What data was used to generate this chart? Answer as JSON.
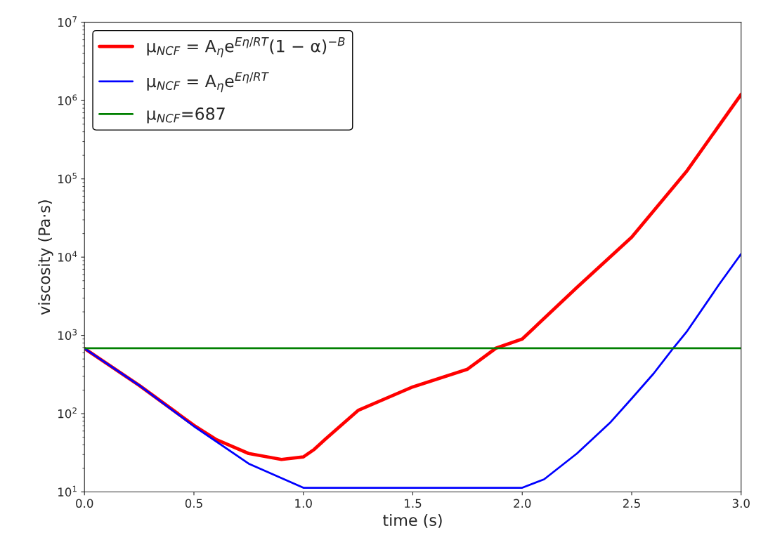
{
  "chart_data": {
    "type": "line",
    "xlabel": "time (s)",
    "ylabel": "viscosity (Pa·s)",
    "log": "y",
    "grid": false,
    "legend": "top left",
    "xlim": [
      0,
      3
    ],
    "xticks": [
      {
        "value": 0,
        "label": "0.0"
      },
      {
        "value": 0.5,
        "label": "0.5"
      },
      {
        "value": 1,
        "label": "1.0"
      },
      {
        "value": 1.5,
        "label": "1.5"
      },
      {
        "value": 2,
        "label": "2.0"
      },
      {
        "value": 2.5,
        "label": "2.5"
      },
      {
        "value": 3,
        "label": "3.0"
      }
    ],
    "ylim": [
      10,
      10000000
    ],
    "yticks": [
      {
        "value": 10,
        "label": "10$^{1}$"
      },
      {
        "value": 100,
        "label": "10$^{2}$"
      },
      {
        "value": 1000,
        "label": "10$^{3}$"
      },
      {
        "value": 10000,
        "label": "10$^{4}$"
      },
      {
        "value": 100000,
        "label": "10$^{5}$"
      },
      {
        "value": 1000000,
        "label": "10$^{6}$"
      },
      {
        "value": 10000000,
        "label": "10$^{7}$"
      }
    ],
    "series": [
      {
        "name": "μ$_{NCF}$ = A$_{η}$e$^{Eη/RT}$(1 − α)$^{−B}$",
        "color": "#ff0000",
        "x": [
          0,
          0.25,
          0.5,
          0.6,
          0.75,
          0.9,
          1.0,
          1.05,
          1.1,
          1.25,
          1.5,
          1.75,
          1.88,
          2.0,
          2.25,
          2.5,
          2.75,
          3.0
        ],
        "values": [
          680,
          230,
          71,
          47,
          31,
          26,
          28,
          35,
          47,
          110,
          220,
          370,
          687,
          900,
          4100,
          18000,
          124000,
          1200000
        ]
      },
      {
        "name": "μ$_{NCF}$ = A$_{η}$e$^{Eη/RT}$",
        "color": "#0000ff",
        "x": [
          0,
          0.25,
          0.5,
          0.75,
          1.0,
          2.0,
          2.1,
          2.25,
          2.4,
          2.5,
          2.6,
          2.69,
          2.75,
          2.9,
          3.0
        ],
        "values": [
          680,
          230,
          69,
          23,
          11.3,
          11.3,
          14.5,
          31,
          76,
          156,
          325,
          687,
          1100,
          4500,
          11000
        ]
      },
      {
        "name": "μ$_{NCF}$=687",
        "color": "#008000",
        "x": [
          0,
          3
        ],
        "values": [
          687,
          687
        ]
      }
    ]
  }
}
